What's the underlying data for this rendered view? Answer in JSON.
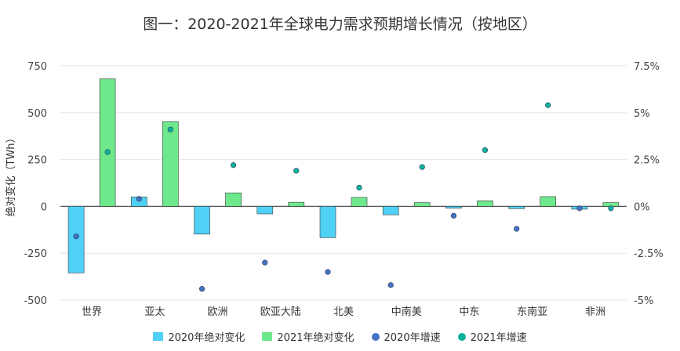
{
  "chart_data": {
    "type": "bar",
    "title": "图一：2020-2021年全球电力需求预期增长情况（按地区）",
    "ylabel": "绝对变化（TWh）",
    "categories": [
      "世界",
      "亚太",
      "欧洲",
      "欧亚大陆",
      "北美",
      "中南美",
      "中东",
      "东南亚",
      "非洲"
    ],
    "ylim": [
      -500,
      750
    ],
    "yticks": [
      -500,
      -250,
      0,
      250,
      500,
      750
    ],
    "ytick_labels": [
      "-500",
      "-250",
      "0",
      "250",
      "500",
      "750"
    ],
    "y2lim": [
      -5,
      7.5
    ],
    "y2ticks": [
      -5,
      -2.5,
      0,
      2.5,
      5,
      7.5
    ],
    "y2tick_labels": [
      "-5%",
      "-2.5%",
      "0%",
      "2.5%",
      "5%",
      "7.5%"
    ],
    "grid": true,
    "legend_position": "bottom",
    "series": [
      {
        "name": "2020年绝对变化",
        "kind": "bar",
        "axis": "left",
        "color": "#4fd0f5",
        "values": [
          -355,
          50,
          -148,
          -40,
          -167,
          -45,
          -10,
          -12,
          -15
        ]
      },
      {
        "name": "2021年绝对变化",
        "kind": "bar",
        "axis": "left",
        "color": "#6de88c",
        "values": [
          680,
          452,
          72,
          22,
          48,
          20,
          30,
          52,
          20
        ]
      },
      {
        "name": "2020年增速",
        "kind": "scatter",
        "axis": "right",
        "color": "#4472c4",
        "values": [
          -1.6,
          0.4,
          -4.4,
          -3.0,
          -3.5,
          -4.2,
          -0.5,
          -1.2,
          -0.1
        ]
      },
      {
        "name": "2021年增速",
        "kind": "scatter",
        "axis": "right",
        "color": "#0eb19a",
        "values": [
          2.9,
          4.1,
          2.2,
          1.9,
          1.0,
          2.1,
          3.0,
          5.4,
          -0.1
        ]
      }
    ]
  }
}
